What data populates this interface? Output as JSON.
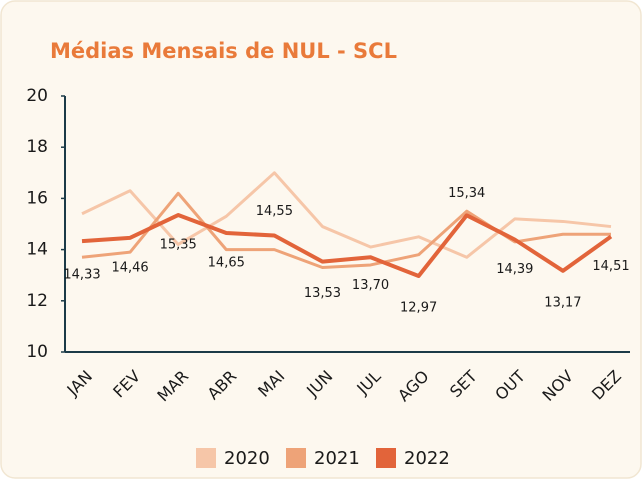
{
  "chart_data": {
    "type": "line",
    "title": "Médias Mensais de NUL - SCL",
    "categories": [
      "JAN",
      "FEV",
      "MAR",
      "ABR",
      "MAI",
      "JUN",
      "JUL",
      "AGO",
      "SET",
      "OUT",
      "NOV",
      "DEZ"
    ],
    "series": [
      {
        "name": "2020",
        "color": "#f6c6a8",
        "values": [
          15.4,
          16.3,
          14.2,
          15.3,
          17.0,
          14.9,
          14.1,
          14.5,
          13.7,
          15.2,
          15.1,
          14.9
        ]
      },
      {
        "name": "2021",
        "color": "#eea378",
        "values": [
          13.7,
          13.9,
          16.2,
          14.0,
          14.0,
          13.3,
          13.4,
          13.8,
          15.5,
          14.3,
          14.6,
          14.6
        ]
      },
      {
        "name": "2022",
        "color": "#e2643a",
        "values": [
          14.33,
          14.46,
          15.35,
          14.65,
          14.55,
          13.53,
          13.7,
          12.97,
          15.34,
          14.39,
          13.17,
          14.51
        ],
        "value_labels": [
          "14,33",
          "14,46",
          "15,35",
          "14,65",
          "14,55",
          "13,53",
          "13,70",
          "12,97",
          "15,34",
          "14,39",
          "13,17",
          "14,51"
        ]
      }
    ],
    "ylim": [
      10,
      20
    ],
    "yticks": [
      10,
      12,
      14,
      16,
      18,
      20
    ],
    "legend": "bottom"
  }
}
